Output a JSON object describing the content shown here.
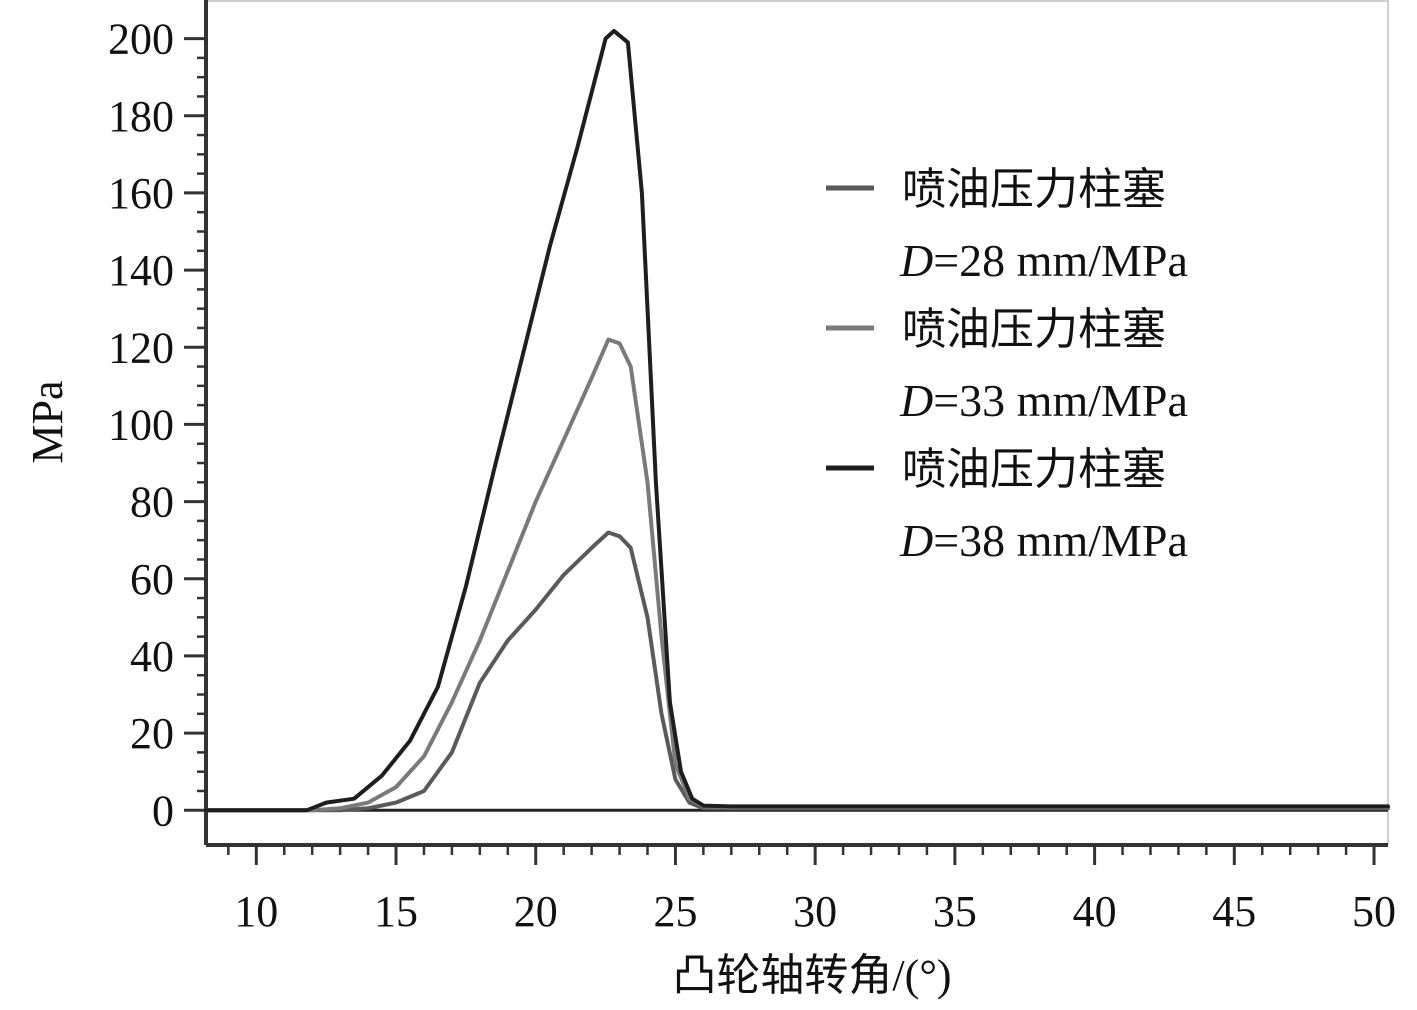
{
  "chart_data": {
    "type": "line",
    "title": "",
    "xlabel": "凸轮轴转角/(°)",
    "ylabel": "MPa",
    "xlim": [
      8.2,
      50.5
    ],
    "ylim": [
      -9,
      210
    ],
    "xticks": [
      10,
      15,
      20,
      25,
      30,
      35,
      40,
      45,
      50
    ],
    "yticks": [
      0,
      20,
      40,
      60,
      80,
      100,
      120,
      140,
      160,
      180,
      200
    ],
    "grid": false,
    "legend_position": "top-right",
    "series": [
      {
        "name": "喷油压力柱塞",
        "name_suffix": "D=28 mm/MPa",
        "name_var": "D",
        "name_rest": "=28 mm/MPa",
        "color": "#5a5a5a",
        "x": [
          8.2,
          12.0,
          13.0,
          14.0,
          15.0,
          16.0,
          17.0,
          18.0,
          19.0,
          20.0,
          21.0,
          22.0,
          22.6,
          23.0,
          23.4,
          24.0,
          24.5,
          25.0,
          25.5,
          26.0,
          27.0,
          30.0,
          35.0,
          40.0,
          45.0,
          50.5
        ],
        "y": [
          0,
          0,
          0,
          0.5,
          2,
          5,
          15,
          33,
          44,
          52,
          61,
          68,
          72,
          71,
          68,
          50,
          25,
          8,
          2,
          0.5,
          0.5,
          0.5,
          0.5,
          0.5,
          0.5,
          0.5
        ]
      },
      {
        "name": "喷油压力柱塞",
        "name_suffix": "D=33 mm/MPa",
        "name_var": "D",
        "name_rest": "=33 mm/MPa",
        "color": "#7a7a7a",
        "x": [
          8.2,
          12.0,
          13.0,
          14.0,
          15.0,
          16.0,
          17.0,
          18.0,
          19.0,
          20.0,
          21.0,
          22.0,
          22.6,
          23.0,
          23.4,
          24.0,
          24.5,
          25.0,
          25.5,
          26.0,
          27.0,
          30.0,
          35.0,
          40.0,
          45.0,
          50.5
        ],
        "y": [
          0,
          0,
          0.5,
          2,
          6,
          14,
          28,
          44,
          62,
          80,
          96,
          112,
          122,
          121,
          115,
          85,
          45,
          12,
          3,
          1,
          0.8,
          0.8,
          0.8,
          0.8,
          0.8,
          0.8
        ]
      },
      {
        "name": "喷油压力柱塞",
        "name_suffix": "D=38 mm/MPa",
        "name_var": "D",
        "name_rest": "=38 mm/MPa",
        "color": "#1e1e1e",
        "x": [
          8.2,
          11.8,
          12.5,
          13.5,
          14.5,
          15.5,
          16.5,
          17.5,
          18.5,
          19.5,
          20.5,
          21.5,
          22.5,
          22.8,
          23.3,
          23.8,
          24.3,
          24.8,
          25.2,
          25.6,
          26.0,
          27.0,
          30.0,
          35.0,
          40.0,
          45.0,
          50.5
        ],
        "y": [
          0,
          0,
          2,
          3,
          9,
          18,
          32,
          58,
          88,
          117,
          146,
          172,
          200,
          202,
          199,
          160,
          85,
          28,
          10,
          3,
          1.2,
          1,
          1,
          1,
          1,
          1,
          1
        ]
      }
    ]
  }
}
